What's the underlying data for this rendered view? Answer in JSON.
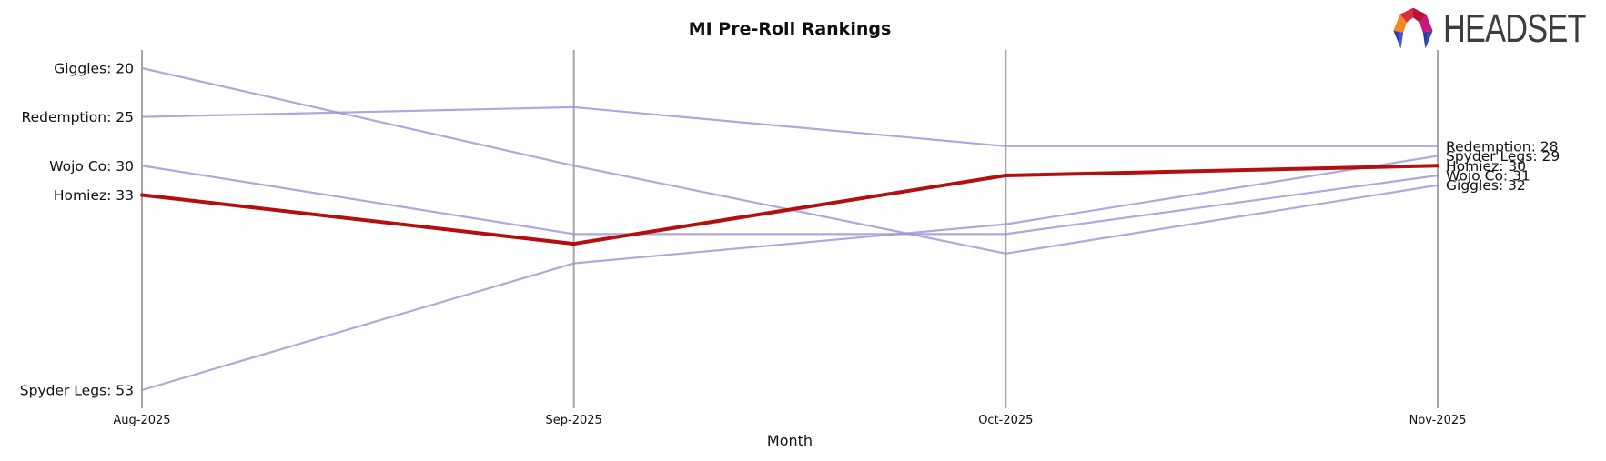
{
  "title": {
    "text": "MI Pre-Roll Rankings"
  },
  "logo": {
    "text": "HEADSET",
    "icon": "headset-logo-icon"
  },
  "chart_data": {
    "type": "line",
    "variant": "bump-ranking-chart",
    "title": "MI Pre-Roll Rankings",
    "xlabel": "Month",
    "x": [
      "Aug-2025",
      "Sep-2025",
      "Oct-2025",
      "Nov-2025"
    ],
    "label_format": "{name}: {value}",
    "legend_position": "none",
    "grid": "vertical-axes-only",
    "y_range_visible": [
      20,
      53
    ],
    "series": [
      {
        "name": "Giggles",
        "values": [
          20,
          30,
          39,
          32
        ],
        "color": "#9c92d4",
        "highlighted": false
      },
      {
        "name": "Redemption",
        "values": [
          25,
          24,
          28,
          28
        ],
        "color": "#9c92d4",
        "highlighted": false
      },
      {
        "name": "Wojo Co",
        "values": [
          30,
          37,
          37,
          31
        ],
        "color": "#9c92d4",
        "highlighted": false
      },
      {
        "name": "Spyder Legs",
        "values": [
          53,
          40,
          36,
          29
        ],
        "color": "#9c92d4",
        "highlighted": false
      },
      {
        "name": "Homiez",
        "values": [
          33,
          38,
          31,
          30
        ],
        "color": "#b40f0e",
        "highlighted": true
      }
    ],
    "left_labels": [
      "Giggles: 20",
      "Redemption: 25",
      "Wojo Co: 30",
      "Homiez: 33",
      "Spyder Legs: 53"
    ],
    "right_labels": [
      "Redemption: 28",
      "Spyder Legs: 29",
      "Homiez: 30",
      "Wojo Co: 31",
      "Giggles: 32"
    ],
    "colors": {
      "line": "#9c92d4",
      "highlight": "#b40f0e",
      "axis": "#a6a6a6",
      "text": "#111111"
    }
  }
}
